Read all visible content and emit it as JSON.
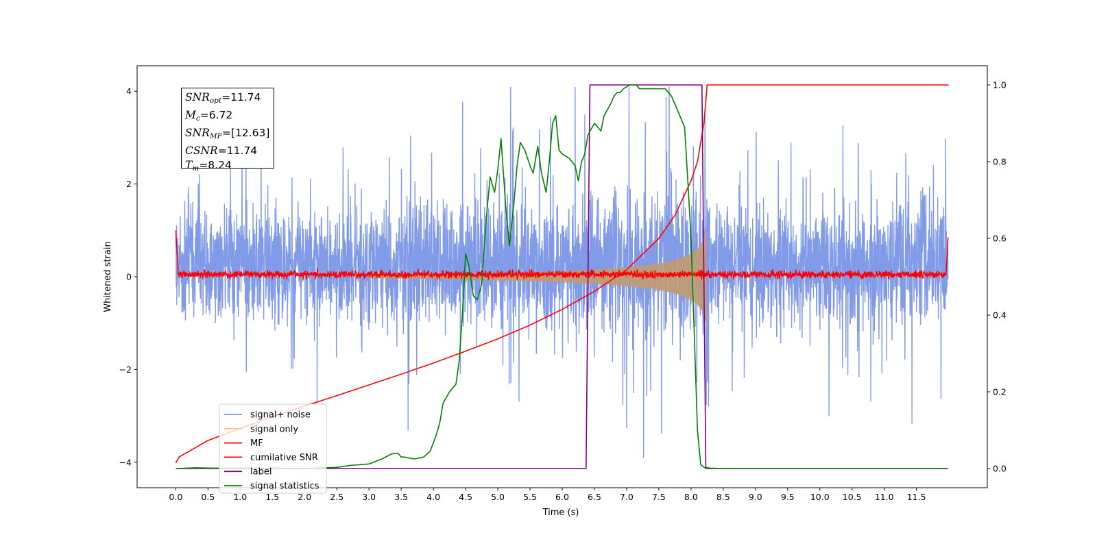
{
  "chart_data": {
    "type": "line",
    "xlabel": "Time (s)",
    "ylabel": "Whitened strain",
    "xlim": [
      -0.6,
      12.6
    ],
    "ylim": [
      -4.55,
      4.55
    ],
    "y2lim": [
      -0.05,
      1.05
    ],
    "x_ticks": [
      0.0,
      0.5,
      1.0,
      1.5,
      2.0,
      2.5,
      3.0,
      3.5,
      4.0,
      4.5,
      5.0,
      5.5,
      6.0,
      6.5,
      7.0,
      7.5,
      8.0,
      8.5,
      9.0,
      9.5,
      10.0,
      10.5,
      11.0,
      11.5
    ],
    "x_tick_labels": [
      "0.0",
      "0.5",
      "1.0",
      "1.5",
      "2.0",
      "2.5",
      "3.0",
      "3.5",
      "4.0",
      "4.5",
      "5.0",
      "5.5",
      "6.0",
      "6.5",
      "7.0",
      "7.5",
      "8.0",
      "8.5",
      "9.0",
      "9.5",
      "10.0",
      "10.5",
      "11.0",
      "11.5"
    ],
    "y_ticks": [
      -4,
      -2,
      0,
      2,
      4
    ],
    "y_tick_labels": [
      "−4",
      "−2",
      "0",
      "2",
      "4"
    ],
    "y2_ticks": [
      0.0,
      0.2,
      0.4,
      0.6,
      0.8,
      1.0
    ],
    "y2_tick_labels": [
      "0.0",
      "0.2",
      "0.4",
      "0.6",
      "0.8",
      "1.0"
    ],
    "colors": {
      "signal_noise": "#7b96e8",
      "signal_only": "#c19a72",
      "mf": "#ff0000",
      "cumulative_snr": "#ff0000",
      "label": "#800080",
      "signal_statistics": "#008000"
    },
    "series": [
      {
        "name": "signal+ noise",
        "key": "signal_noise",
        "axis": "left",
        "style": "noise",
        "x_range": [
          0.0,
          11.99
        ],
        "envelope": [
          [
            0.0,
            2.5
          ],
          [
            2.3,
            2.6
          ],
          [
            4.5,
            2.7
          ],
          [
            7.0,
            3.3
          ],
          [
            8.2,
            3.5
          ],
          [
            8.3,
            2.6
          ],
          [
            11.99,
            3.0
          ]
        ]
      },
      {
        "name": "signal only",
        "key": "signal_only",
        "axis": "left",
        "style": "envelope",
        "x": [
          3.0,
          4.0,
          5.0,
          6.0,
          6.5,
          7.0,
          7.5,
          7.8,
          8.0,
          8.1,
          8.2,
          8.24
        ],
        "amp": [
          0.03,
          0.05,
          0.08,
          0.12,
          0.15,
          0.2,
          0.28,
          0.38,
          0.5,
          0.6,
          0.8,
          1.1
        ]
      },
      {
        "name": "MF",
        "key": "mf",
        "axis": "left",
        "style": "noise",
        "x_range": [
          0.0,
          11.99
        ],
        "edge_values": [
          1.0,
          0.85
        ]
      },
      {
        "name": "cumilative SNR",
        "key": "cumulative_snr",
        "axis": "right",
        "x": [
          0.0,
          0.05,
          0.5,
          1.0,
          1.5,
          2.0,
          2.5,
          3.0,
          3.5,
          4.0,
          4.5,
          5.0,
          5.5,
          6.0,
          6.5,
          7.0,
          7.5,
          7.75,
          8.0,
          8.1,
          8.2,
          8.25,
          12.0
        ],
        "y": [
          0.015,
          0.03,
          0.073,
          0.105,
          0.135,
          0.163,
          0.19,
          0.218,
          0.246,
          0.275,
          0.306,
          0.338,
          0.374,
          0.415,
          0.462,
          0.518,
          0.6,
          0.66,
          0.75,
          0.8,
          0.9,
          1.0,
          1.0
        ]
      },
      {
        "name": "label",
        "key": "label",
        "axis": "right",
        "x": [
          0.0,
          6.37,
          6.43,
          8.17,
          8.23,
          11.99
        ],
        "y": [
          0.0,
          0.0,
          1.0,
          1.0,
          0.0,
          0.0
        ]
      },
      {
        "name": "signal statistics",
        "key": "signal_statistics",
        "axis": "right",
        "x": [
          0.0,
          0.3,
          0.6,
          1.0,
          1.5,
          2.0,
          2.5,
          2.7,
          3.0,
          3.2,
          3.35,
          3.45,
          3.5,
          3.55,
          3.6,
          3.7,
          3.8,
          3.85,
          3.95,
          4.05,
          4.1,
          4.15,
          4.25,
          4.35,
          4.4,
          4.45,
          4.5,
          4.55,
          4.62,
          4.68,
          4.75,
          4.82,
          4.88,
          4.95,
          5.0,
          5.05,
          5.12,
          5.18,
          5.25,
          5.3,
          5.35,
          5.42,
          5.5,
          5.55,
          5.62,
          5.68,
          5.75,
          5.8,
          5.85,
          5.9,
          5.95,
          6.0,
          6.1,
          6.2,
          6.25,
          6.3,
          6.35,
          6.4,
          6.5,
          6.6,
          6.65,
          6.75,
          6.8,
          6.85,
          6.9,
          6.95,
          7.05,
          7.15,
          7.2,
          7.3,
          7.4,
          7.5,
          7.6,
          7.7,
          7.8,
          7.9,
          7.95,
          8.0,
          8.05,
          8.1,
          8.15,
          8.2,
          8.3,
          8.5,
          9.0,
          10.0,
          11.0,
          11.99
        ],
        "y": [
          0.0,
          0.002,
          0.001,
          0.001,
          0.001,
          0.0,
          0.003,
          0.008,
          0.012,
          0.025,
          0.038,
          0.04,
          0.03,
          0.03,
          0.028,
          0.025,
          0.028,
          0.03,
          0.045,
          0.09,
          0.12,
          0.17,
          0.2,
          0.22,
          0.28,
          0.4,
          0.56,
          0.53,
          0.45,
          0.44,
          0.48,
          0.65,
          0.76,
          0.72,
          0.78,
          0.86,
          0.69,
          0.58,
          0.69,
          0.79,
          0.85,
          0.83,
          0.79,
          0.77,
          0.84,
          0.77,
          0.72,
          0.8,
          0.9,
          0.92,
          0.83,
          0.82,
          0.81,
          0.79,
          0.75,
          0.8,
          0.82,
          0.87,
          0.9,
          0.88,
          0.92,
          0.95,
          0.97,
          0.98,
          0.98,
          0.99,
          1.0,
          1.0,
          0.99,
          0.99,
          0.99,
          0.99,
          0.99,
          0.97,
          0.93,
          0.89,
          0.75,
          0.6,
          0.35,
          0.1,
          0.01,
          0.003,
          0.001,
          0.0,
          0.0,
          0.0,
          0.0,
          0.0
        ]
      }
    ],
    "legend": {
      "placement": "lower-left",
      "entries": [
        "signal+ noise",
        "signal only",
        "MF",
        "cumilative SNR",
        "label",
        "signal statistics"
      ]
    },
    "annotation_box": {
      "snr_opt_label": "SNR",
      "snr_opt_sub": "opt",
      "snr_opt_value": "=11.74",
      "mc_label": "M",
      "mc_sub": "c",
      "mc_value": "=6.72",
      "snr_mf_label": "SNR",
      "snr_mf_sub": "MF",
      "snr_mf_value": "=[12.63]",
      "csnr_label": "CSNR",
      "csnr_value": "=11.74",
      "tm_label": "T",
      "tm_sub": "m",
      "tm_value": "=8.24"
    }
  }
}
